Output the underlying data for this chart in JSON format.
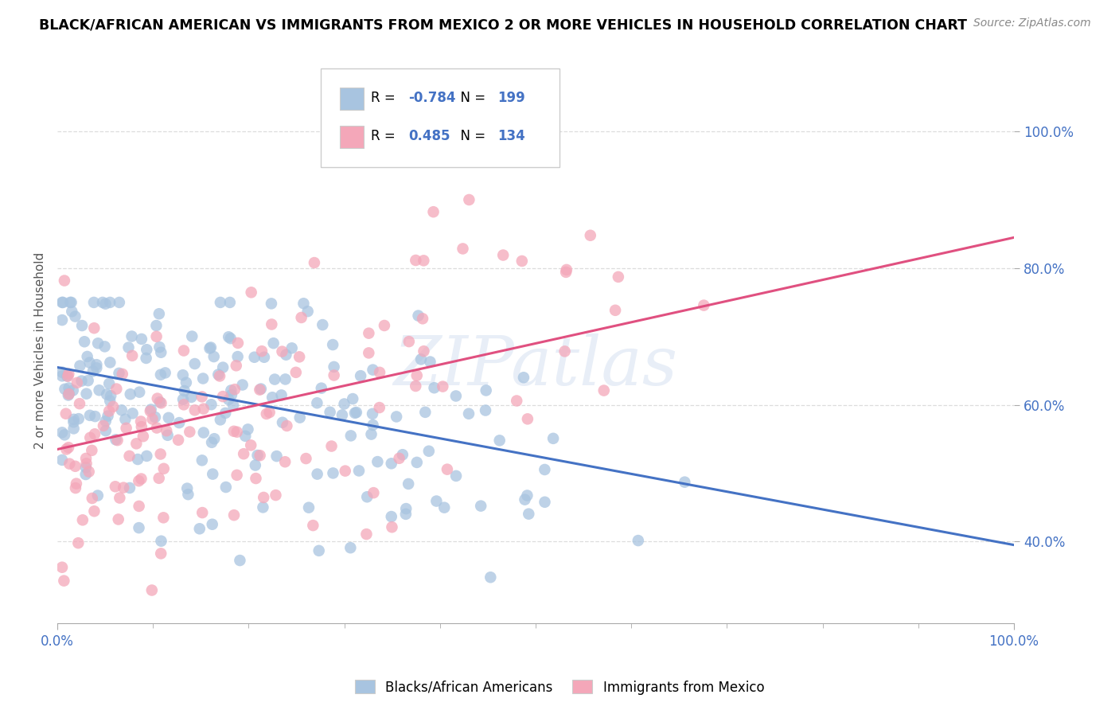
{
  "title": "BLACK/AFRICAN AMERICAN VS IMMIGRANTS FROM MEXICO 2 OR MORE VEHICLES IN HOUSEHOLD CORRELATION CHART",
  "source": "Source: ZipAtlas.com",
  "ylabel": "2 or more Vehicles in Household",
  "blue_R": -0.784,
  "blue_N": 199,
  "pink_R": 0.485,
  "pink_N": 134,
  "blue_label": "Blacks/African Americans",
  "pink_label": "Immigrants from Mexico",
  "blue_color": "#a8c4e0",
  "pink_color": "#f4a7b9",
  "blue_line_color": "#4472c4",
  "pink_line_color": "#e05080",
  "legend_blue_color": "#a8c4e0",
  "legend_pink_color": "#f4a7b9",
  "watermark": "ZIPatlas",
  "background_color": "#ffffff",
  "grid_color": "#dddddd",
  "title_color": "#000000",
  "axis_label_color": "#555555",
  "tick_color": "#4472c4",
  "blue_seed": 42,
  "pink_seed": 7,
  "blue_trend_x0": 0.0,
  "blue_trend_y0": 0.655,
  "blue_trend_x1": 1.0,
  "blue_trend_y1": 0.395,
  "pink_trend_x0": 0.0,
  "pink_trend_y0": 0.535,
  "pink_trend_x1": 1.0,
  "pink_trend_y1": 0.845,
  "xlim": [
    0.0,
    1.0
  ],
  "ylim": [
    0.28,
    1.08
  ],
  "ytick_vals": [
    0.4,
    0.6,
    0.8,
    1.0
  ],
  "ytick_labels": [
    "40.0%",
    "60.0%",
    "80.0%",
    "100.0%"
  ]
}
